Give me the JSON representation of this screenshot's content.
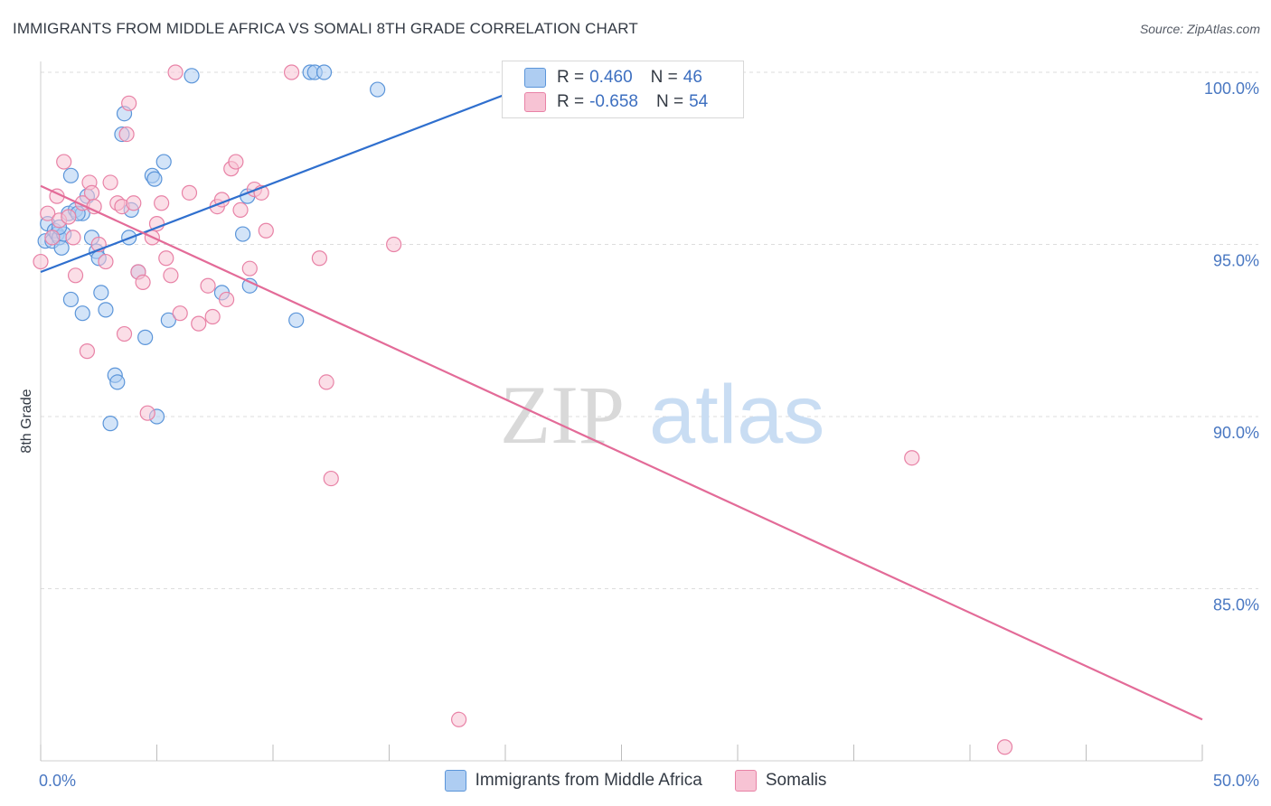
{
  "title": "IMMIGRANTS FROM MIDDLE AFRICA VS SOMALI 8TH GRADE CORRELATION CHART",
  "source": "Source: ZipAtlas.com",
  "watermark": {
    "zip": "ZIP",
    "atlas": "atlas"
  },
  "colors": {
    "blue": "#5b95d9",
    "blue_fill": "#aecdf2",
    "blue_line": "#2f6fce",
    "pink": "#e882a6",
    "pink_fill": "#f7c3d4",
    "pink_line": "#e36b98",
    "grid": "#dddddd",
    "tick_text": "#4a78c2"
  },
  "legend": [
    {
      "r_label": "R =",
      "r_value": "0.460",
      "n_label": "N =",
      "n_value": "46"
    },
    {
      "r_label": "R =",
      "r_value": "-0.658",
      "n_label": "N =",
      "n_value": "54"
    }
  ],
  "chart_data": {
    "type": "scatter",
    "title": "IMMIGRANTS FROM MIDDLE AFRICA VS SOMALI 8TH GRADE CORRELATION CHART",
    "xlabel": "",
    "ylabel": "8th Grade",
    "xlim": [
      0,
      50
    ],
    "ylim": [
      80.5,
      100.8
    ],
    "x_tick_labels": [
      "0.0%",
      "50.0%"
    ],
    "y_ticks": [
      85,
      90,
      95,
      100
    ],
    "y_tick_labels": [
      "85.0%",
      "90.0%",
      "95.0%",
      "100.0%"
    ],
    "series": [
      {
        "name": "Immigrants from Middle Africa",
        "color": "blue",
        "trend": {
          "x": [
            0,
            22.5
          ],
          "y": [
            94.2,
            100.0
          ]
        },
        "points": [
          [
            0.2,
            95.1
          ],
          [
            0.3,
            95.6
          ],
          [
            0.5,
            95.1
          ],
          [
            0.6,
            95.4
          ],
          [
            0.7,
            95.3
          ],
          [
            0.8,
            95.2
          ],
          [
            0.9,
            94.9
          ],
          [
            1.0,
            95.3
          ],
          [
            1.2,
            95.9
          ],
          [
            1.3,
            97.0
          ],
          [
            1.5,
            96.0
          ],
          [
            1.8,
            95.9
          ],
          [
            2.0,
            96.4
          ],
          [
            2.2,
            95.2
          ],
          [
            2.4,
            94.8
          ],
          [
            2.5,
            94.6
          ],
          [
            2.6,
            93.6
          ],
          [
            2.8,
            93.1
          ],
          [
            3.0,
            89.8
          ],
          [
            3.2,
            91.2
          ],
          [
            3.3,
            91.0
          ],
          [
            3.5,
            98.2
          ],
          [
            3.6,
            98.8
          ],
          [
            3.8,
            95.2
          ],
          [
            3.9,
            96.0
          ],
          [
            4.2,
            94.2
          ],
          [
            4.5,
            92.3
          ],
          [
            4.8,
            97.0
          ],
          [
            4.9,
            96.9
          ],
          [
            5.0,
            90.0
          ],
          [
            5.3,
            97.4
          ],
          [
            5.5,
            92.8
          ],
          [
            1.3,
            93.4
          ],
          [
            1.8,
            93.0
          ],
          [
            1.6,
            95.9
          ],
          [
            6.5,
            99.9
          ],
          [
            7.8,
            93.6
          ],
          [
            8.7,
            95.3
          ],
          [
            8.9,
            96.4
          ],
          [
            9.0,
            93.8
          ],
          [
            11.0,
            92.8
          ],
          [
            11.6,
            100.0
          ],
          [
            11.8,
            100.0
          ],
          [
            12.2,
            100.0
          ],
          [
            14.5,
            99.5
          ],
          [
            0.8,
            95.5
          ]
        ]
      },
      {
        "name": "Somalis",
        "color": "pink",
        "trend": {
          "x": [
            0,
            50
          ],
          "y": [
            96.7,
            81.2
          ]
        },
        "points": [
          [
            0.0,
            94.5
          ],
          [
            0.3,
            95.9
          ],
          [
            0.5,
            95.2
          ],
          [
            0.7,
            96.4
          ],
          [
            0.8,
            95.7
          ],
          [
            1.0,
            97.4
          ],
          [
            1.2,
            95.8
          ],
          [
            1.4,
            95.2
          ],
          [
            1.5,
            94.1
          ],
          [
            1.8,
            96.2
          ],
          [
            2.0,
            91.9
          ],
          [
            2.1,
            96.8
          ],
          [
            2.2,
            96.5
          ],
          [
            2.3,
            96.1
          ],
          [
            2.5,
            95.0
          ],
          [
            2.8,
            94.5
          ],
          [
            3.0,
            96.8
          ],
          [
            3.3,
            96.2
          ],
          [
            3.5,
            96.1
          ],
          [
            3.6,
            92.4
          ],
          [
            3.7,
            98.2
          ],
          [
            3.8,
            99.1
          ],
          [
            4.0,
            96.2
          ],
          [
            4.2,
            94.2
          ],
          [
            4.4,
            93.9
          ],
          [
            4.6,
            90.1
          ],
          [
            4.8,
            95.2
          ],
          [
            5.0,
            95.6
          ],
          [
            5.2,
            96.2
          ],
          [
            5.4,
            94.6
          ],
          [
            5.6,
            94.1
          ],
          [
            6.0,
            93.0
          ],
          [
            6.4,
            96.5
          ],
          [
            5.8,
            100.0
          ],
          [
            6.8,
            92.7
          ],
          [
            7.2,
            93.8
          ],
          [
            7.4,
            92.9
          ],
          [
            7.6,
            96.1
          ],
          [
            7.8,
            96.3
          ],
          [
            8.0,
            93.4
          ],
          [
            8.2,
            97.2
          ],
          [
            8.4,
            97.4
          ],
          [
            8.6,
            96.0
          ],
          [
            9.0,
            94.3
          ],
          [
            9.2,
            96.6
          ],
          [
            9.5,
            96.5
          ],
          [
            9.7,
            95.4
          ],
          [
            10.8,
            100.0
          ],
          [
            12.0,
            94.6
          ],
          [
            12.3,
            91.0
          ],
          [
            12.5,
            88.2
          ],
          [
            15.2,
            95.0
          ],
          [
            18.0,
            81.2
          ],
          [
            37.5,
            88.8
          ]
        ]
      }
    ],
    "extra_points_note": "",
    "legend_position": "top-center"
  },
  "bottom_legend": [
    "Immigrants from Middle Africa",
    "Somalis"
  ],
  "outlier": {
    "series": "Somalis",
    "x": 41.5,
    "y": 80.4
  }
}
